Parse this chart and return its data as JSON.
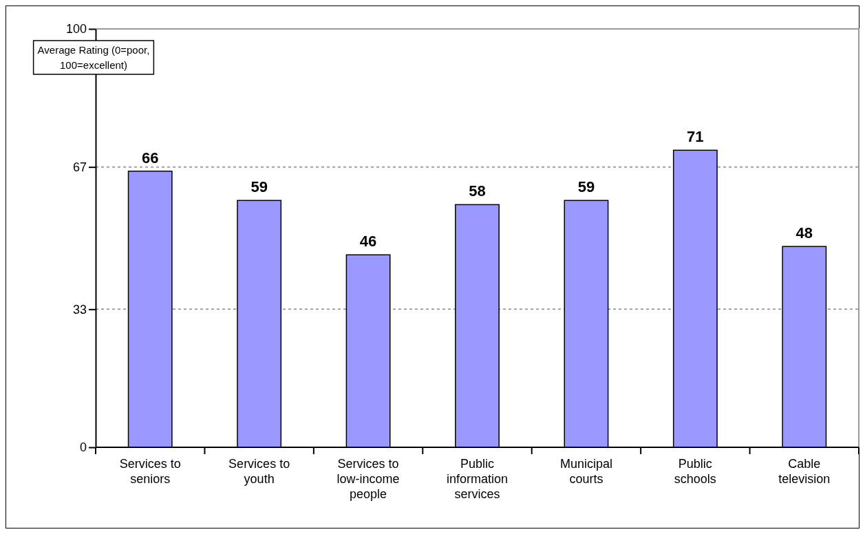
{
  "chart_data": {
    "type": "bar",
    "ylabel": "Average Rating (0=poor, 100=excellent)",
    "categories": [
      "Services to seniors",
      "Services to youth",
      "Services to low-income people",
      "Public information services",
      "Municipal courts",
      "Public schools",
      "Cable television"
    ],
    "values": [
      66,
      59,
      46,
      58,
      59,
      71,
      48
    ],
    "color": "#9999ff",
    "ylim": [
      0,
      100
    ],
    "yticks": [
      0,
      33,
      67,
      100
    ],
    "grid": "y",
    "data_labels": true
  }
}
